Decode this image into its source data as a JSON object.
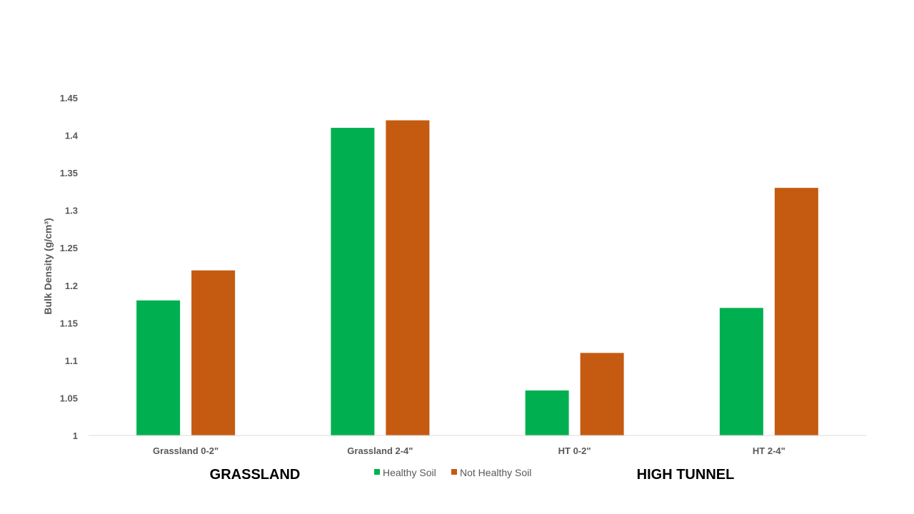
{
  "colors": {
    "healthy": "#00B050",
    "not_healthy": "#C55A11",
    "axis": "#D9D9D9"
  },
  "chart_data": {
    "type": "bar",
    "categories": [
      "Grassland 0-2\"",
      "Grassland 2-4\"",
      "HT 0-2\"",
      "HT 2-4\""
    ],
    "series": [
      {
        "name": "Healthy Soil",
        "values": [
          1.18,
          1.41,
          1.06,
          1.17
        ]
      },
      {
        "name": "Not Healthy Soil",
        "values": [
          1.22,
          1.42,
          1.11,
          1.33
        ]
      }
    ],
    "title": "",
    "xlabel": "",
    "ylabel": "Bulk Density (g/cm³)",
    "ylim": [
      1,
      1.45
    ],
    "yticks": [
      "1",
      "1.05",
      "1.1",
      "1.15",
      "1.2",
      "1.25",
      "1.3",
      "1.35",
      "1.4",
      "1.45"
    ],
    "grid": false,
    "legend": "bottom-center",
    "group_labels": [
      "GRASSLAND",
      "HIGH TUNNEL"
    ]
  }
}
